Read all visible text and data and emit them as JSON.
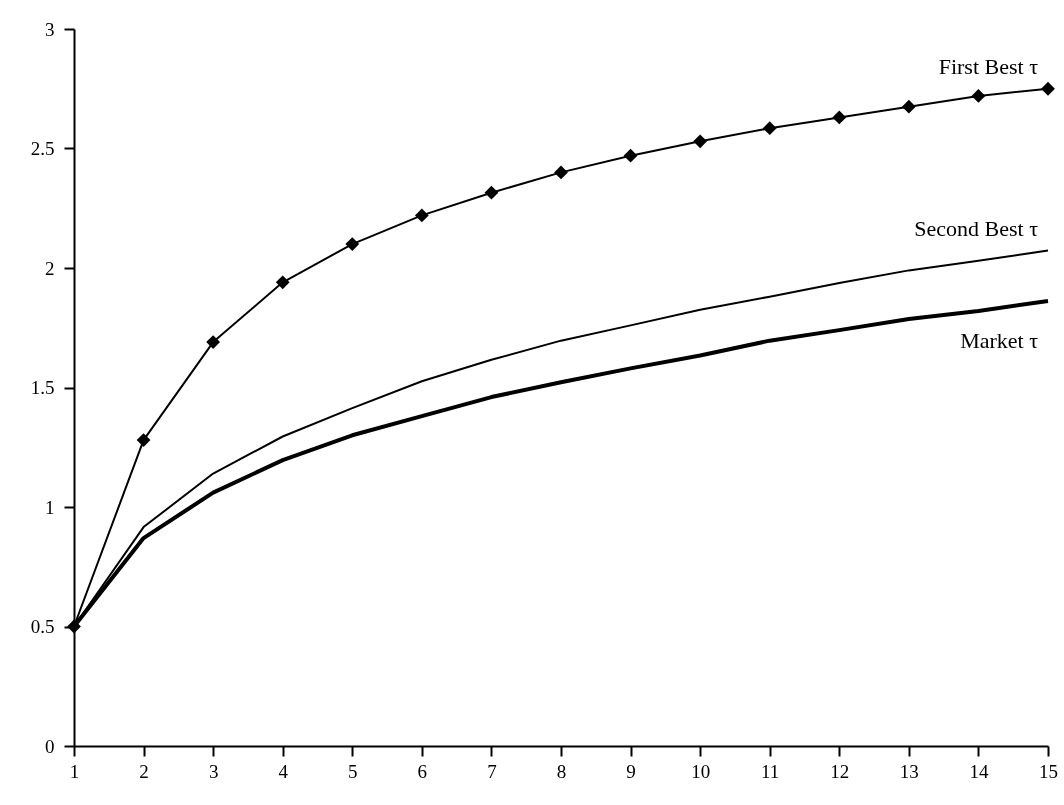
{
  "chart_data": {
    "type": "line",
    "x": [
      1,
      2,
      3,
      4,
      5,
      6,
      7,
      8,
      9,
      10,
      11,
      12,
      13,
      14,
      15
    ],
    "xlim": [
      1,
      15
    ],
    "xticks": [
      1,
      2,
      3,
      4,
      5,
      6,
      7,
      8,
      9,
      10,
      11,
      12,
      13,
      14,
      15
    ],
    "ylim": [
      0,
      3
    ],
    "yticks": [
      0,
      0.5,
      1,
      1.5,
      2,
      2.5,
      3
    ],
    "grid": false,
    "legend": false,
    "series": [
      {
        "name": "First Best  τ",
        "color": "#000000",
        "marker": "diamond",
        "values": [
          0.5,
          1.28,
          1.69,
          1.94,
          2.1,
          2.22,
          2.315,
          2.4,
          2.47,
          2.53,
          2.585,
          2.63,
          2.675,
          2.72,
          2.75
        ]
      },
      {
        "name": "Second Best τ",
        "color": "#000000",
        "marker": "none",
        "values": [
          0.5,
          0.916,
          1.14,
          1.295,
          1.414,
          1.526,
          1.616,
          1.696,
          1.76,
          1.825,
          1.88,
          1.937,
          1.99,
          2.03,
          2.073
        ]
      },
      {
        "name": "Market τ",
        "color": "#000000",
        "marker": "none",
        "values": [
          0.5,
          0.87,
          1.06,
          1.196,
          1.3,
          1.38,
          1.46,
          1.522,
          1.58,
          1.634,
          1.696,
          1.74,
          1.787,
          1.82,
          1.862
        ]
      }
    ]
  }
}
